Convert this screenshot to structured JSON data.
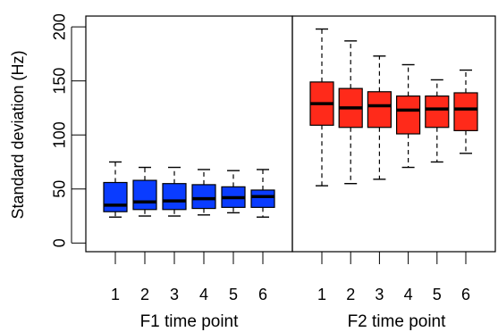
{
  "chart_data": {
    "type": "boxplot",
    "ylabel": "Standard deviation (Hz)",
    "ylim": [
      -8,
      210
    ],
    "yticks": [
      0,
      50,
      100,
      150,
      200
    ],
    "grid": false,
    "legend": "none",
    "panels": [
      {
        "name": "F1",
        "xlabel": "F1 time point",
        "color": "#0a3cff",
        "categories": [
          "1",
          "2",
          "3",
          "4",
          "5",
          "6"
        ],
        "boxes": [
          {
            "whisker_low": 24,
            "q1": 29,
            "median": 35,
            "q3": 56,
            "whisker_high": 75
          },
          {
            "whisker_low": 25,
            "q1": 31,
            "median": 38,
            "q3": 58,
            "whisker_high": 70
          },
          {
            "whisker_low": 25,
            "q1": 31,
            "median": 39,
            "q3": 55,
            "whisker_high": 70
          },
          {
            "whisker_low": 26,
            "q1": 32,
            "median": 41,
            "q3": 54,
            "whisker_high": 68
          },
          {
            "whisker_low": 28,
            "q1": 33,
            "median": 42,
            "q3": 52,
            "whisker_high": 67
          },
          {
            "whisker_low": 24,
            "q1": 33,
            "median": 43,
            "q3": 49,
            "whisker_high": 68
          }
        ]
      },
      {
        "name": "F2",
        "xlabel": "F2 time point",
        "color": "#ff2a1a",
        "categories": [
          "1",
          "2",
          "3",
          "4",
          "5",
          "6"
        ],
        "boxes": [
          {
            "whisker_low": 53,
            "q1": 109,
            "median": 129,
            "q3": 149,
            "whisker_high": 198
          },
          {
            "whisker_low": 55,
            "q1": 107,
            "median": 125,
            "q3": 143,
            "whisker_high": 187
          },
          {
            "whisker_low": 59,
            "q1": 107,
            "median": 127,
            "q3": 140,
            "whisker_high": 173
          },
          {
            "whisker_low": 70,
            "q1": 101,
            "median": 123,
            "q3": 136,
            "whisker_high": 165
          },
          {
            "whisker_low": 75,
            "q1": 107,
            "median": 124,
            "q3": 136,
            "whisker_high": 151
          },
          {
            "whisker_low": 83,
            "q1": 104,
            "median": 124,
            "q3": 139,
            "whisker_high": 160
          }
        ]
      }
    ]
  }
}
